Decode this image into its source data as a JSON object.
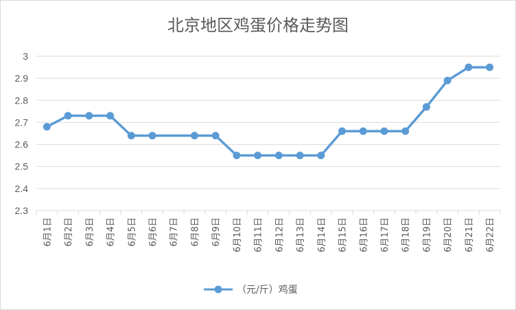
{
  "chart_data": {
    "type": "line",
    "title": "北京地区鸡蛋价格走势图",
    "categories": [
      "6月1日",
      "6月2日",
      "6月3日",
      "6月4日",
      "6月5日",
      "6月6日",
      "6月7日",
      "6月8日",
      "6月9日",
      "6月10日",
      "6月11日",
      "6月12日",
      "6月13日",
      "6月14日",
      "6月15日",
      "6月16日",
      "6月17日",
      "6月18日",
      "6月19日",
      "6月20日",
      "6月21日",
      "6月22日"
    ],
    "series": [
      {
        "name": "（元/斤）鸡蛋",
        "values": [
          2.68,
          2.73,
          2.73,
          2.73,
          2.64,
          2.64,
          null,
          2.64,
          2.64,
          2.55,
          2.55,
          2.55,
          2.55,
          2.55,
          2.66,
          2.66,
          2.66,
          2.66,
          2.77,
          2.89,
          2.95,
          2.95
        ],
        "color": "#5b9bd5"
      }
    ],
    "ylim": [
      2.3,
      3.0
    ],
    "yticks": [
      "2.3",
      "2.4",
      "2.5",
      "2.6",
      "2.7",
      "2.8",
      "2.9",
      "3"
    ],
    "grid": true,
    "legend": "bottom"
  }
}
